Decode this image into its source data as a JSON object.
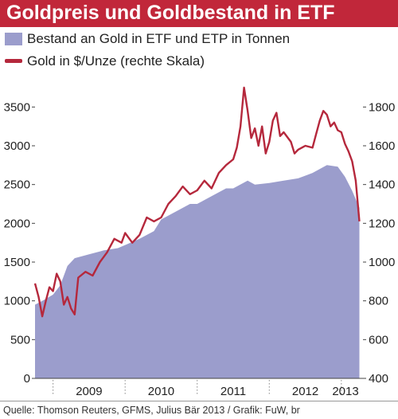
{
  "chart_data": {
    "type": "area+line",
    "title": "Goldpreis und Goldbestand in ETF",
    "series": [
      {
        "name": "Bestand an Gold in ETF und ETP in Tonnen",
        "kind": "area",
        "axis": "left",
        "color": "#9b9dcc",
        "x": [
          2008.75,
          2008.85,
          2009.0,
          2009.1,
          2009.2,
          2009.3,
          2009.5,
          2009.7,
          2009.9,
          2010.0,
          2010.2,
          2010.4,
          2010.5,
          2010.7,
          2010.9,
          2011.0,
          2011.2,
          2011.4,
          2011.5,
          2011.7,
          2011.8,
          2012.0,
          2012.2,
          2012.4,
          2012.6,
          2012.8,
          2012.95,
          2013.05,
          2013.15,
          2013.25
        ],
        "values": [
          950,
          1000,
          1080,
          1200,
          1450,
          1550,
          1600,
          1650,
          1680,
          1720,
          1800,
          1900,
          2050,
          2150,
          2250,
          2250,
          2350,
          2450,
          2450,
          2550,
          2500,
          2520,
          2550,
          2580,
          2650,
          2750,
          2730,
          2600,
          2420,
          2200
        ]
      },
      {
        "name": "Gold in $/Unze (rechte Skala)",
        "kind": "line",
        "axis": "right",
        "color": "#b5283c",
        "x": [
          2008.75,
          2008.8,
          2008.85,
          2008.9,
          2008.95,
          2009.0,
          2009.05,
          2009.1,
          2009.15,
          2009.2,
          2009.25,
          2009.3,
          2009.35,
          2009.45,
          2009.55,
          2009.65,
          2009.75,
          2009.85,
          2009.95,
          2010.0,
          2010.1,
          2010.2,
          2010.3,
          2010.4,
          2010.5,
          2010.6,
          2010.7,
          2010.8,
          2010.9,
          2011.0,
          2011.1,
          2011.2,
          2011.3,
          2011.4,
          2011.5,
          2011.55,
          2011.6,
          2011.65,
          2011.7,
          2011.75,
          2011.8,
          2011.85,
          2011.9,
          2011.95,
          2012.0,
          2012.05,
          2012.1,
          2012.15,
          2012.2,
          2012.3,
          2012.35,
          2012.4,
          2012.5,
          2012.6,
          2012.65,
          2012.7,
          2012.75,
          2012.8,
          2012.85,
          2012.9,
          2012.95,
          2013.0,
          2013.05,
          2013.1,
          2013.15,
          2013.2,
          2013.25
        ],
        "values": [
          890,
          820,
          720,
          800,
          870,
          850,
          940,
          900,
          780,
          820,
          760,
          730,
          920,
          950,
          930,
          1000,
          1050,
          1120,
          1100,
          1150,
          1100,
          1140,
          1230,
          1210,
          1230,
          1300,
          1340,
          1390,
          1350,
          1370,
          1420,
          1380,
          1460,
          1500,
          1530,
          1590,
          1700,
          1900,
          1780,
          1640,
          1690,
          1600,
          1700,
          1560,
          1620,
          1730,
          1770,
          1650,
          1670,
          1620,
          1560,
          1580,
          1600,
          1590,
          1660,
          1730,
          1780,
          1760,
          1700,
          1720,
          1680,
          1670,
          1610,
          1570,
          1520,
          1420,
          1210
        ]
      }
    ],
    "xlim": [
      2008.75,
      2013.3
    ],
    "x_tick_labels": [
      "2009",
      "2010",
      "2011",
      "2012",
      "2013"
    ],
    "x_tick_positions": [
      2009.0,
      2010.0,
      2011.0,
      2012.0,
      2013.0
    ],
    "left_axis": {
      "ylim": [
        0,
        3750
      ],
      "ticks": [
        "0",
        "500",
        "1000",
        "1500",
        "2000",
        "2500",
        "3000",
        "3500"
      ],
      "tick_values": [
        0,
        500,
        1000,
        1500,
        2000,
        2500,
        3000,
        3500
      ]
    },
    "right_axis": {
      "ylim": [
        400,
        1900
      ],
      "ticks": [
        "400",
        "600",
        "800",
        "1000",
        "1200",
        "1400",
        "1600",
        "1800"
      ],
      "tick_values": [
        400,
        600,
        800,
        1000,
        1200,
        1400,
        1600,
        1800
      ]
    },
    "legend_position": "top-left"
  },
  "source": "Quelle: Thomson Reuters, GFMS, Julius Bär 2013  / Grafik: FuW, br"
}
